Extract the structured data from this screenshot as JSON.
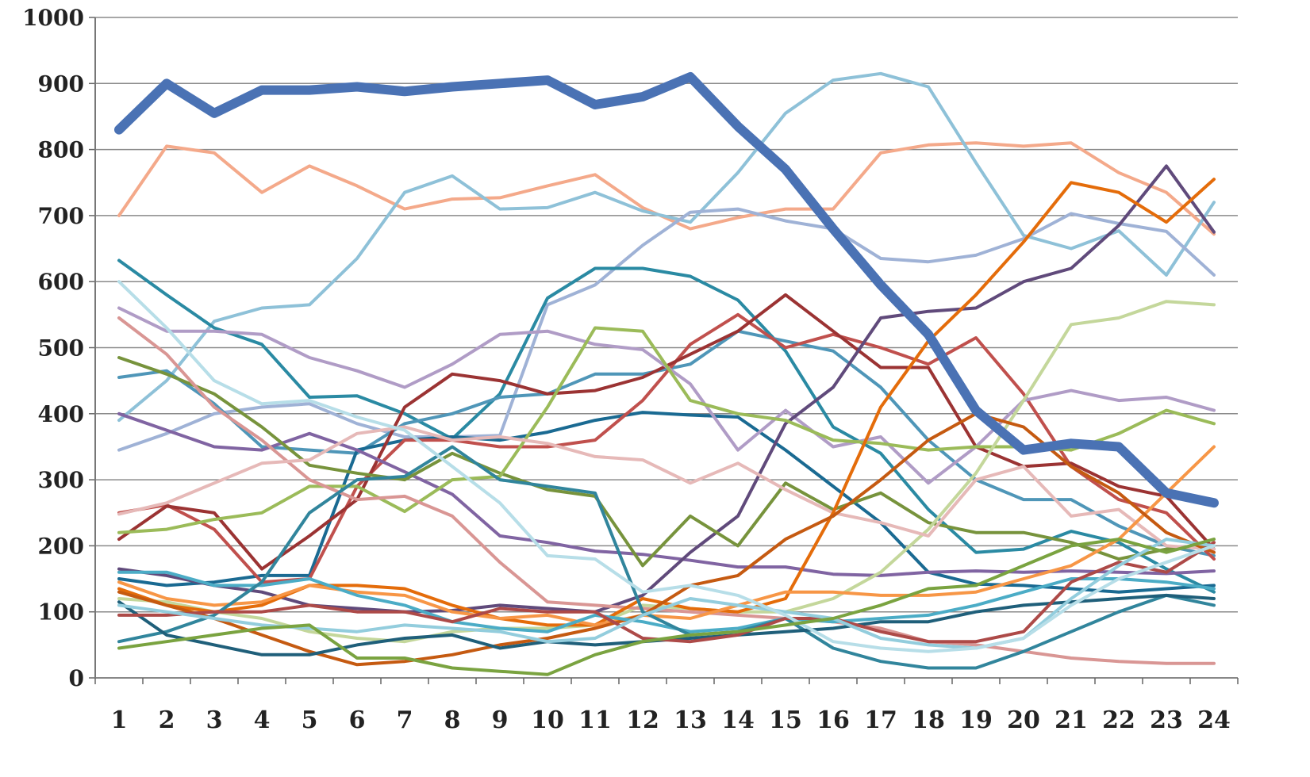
{
  "chart_data": {
    "type": "line",
    "title_fragment": "",
    "xlabel": "",
    "ylabel": "",
    "x": [
      1,
      2,
      3,
      4,
      5,
      6,
      7,
      8,
      9,
      10,
      11,
      12,
      13,
      14,
      15,
      16,
      17,
      18,
      19,
      20,
      21,
      22,
      23,
      24
    ],
    "ylim": [
      0,
      1000
    ],
    "yticks": [
      0,
      100,
      200,
      300,
      400,
      500,
      600,
      700,
      800,
      900,
      1000
    ],
    "grid": "horizontal",
    "legend": "none",
    "series": [
      {
        "color": "#4a72b4",
        "width": 12,
        "values": [
          830,
          900,
          855,
          890,
          890,
          895,
          888,
          895,
          900,
          905,
          868,
          880,
          910,
          835,
          770,
          680,
          595,
          520,
          405,
          345,
          355,
          350,
          280,
          265
        ]
      },
      {
        "color": "#f4a98a",
        "width": 4,
        "values": [
          700,
          805,
          795,
          735,
          775,
          745,
          710,
          725,
          727,
          745,
          762,
          712,
          680,
          697,
          710,
          710,
          795,
          807,
          810,
          805,
          810,
          765,
          735,
          672
        ]
      },
      {
        "color": "#8ec1d8",
        "width": 4,
        "values": [
          390,
          450,
          540,
          560,
          565,
          635,
          735,
          760,
          710,
          712,
          735,
          707,
          690,
          765,
          855,
          905,
          915,
          895,
          780,
          670,
          650,
          677,
          610,
          720
        ]
      },
      {
        "color": "#9fb2d6",
        "width": 4,
        "values": [
          345,
          370,
          400,
          410,
          415,
          385,
          365,
          365,
          367,
          565,
          595,
          655,
          705,
          710,
          692,
          680,
          635,
          630,
          640,
          665,
          703,
          688,
          676,
          610
        ]
      },
      {
        "color": "#2a8aa3",
        "width": 4,
        "values": [
          632,
          580,
          530,
          505,
          425,
          427,
          400,
          362,
          430,
          575,
          620,
          620,
          608,
          572,
          495,
          380,
          340,
          255,
          190,
          195,
          222,
          205,
          165,
          130
        ]
      },
      {
        "color": "#4f96b8",
        "width": 4,
        "values": [
          455,
          465,
          415,
          350,
          345,
          340,
          385,
          400,
          425,
          430,
          460,
          460,
          475,
          525,
          510,
          495,
          440,
          360,
          300,
          270,
          270,
          230,
          200,
          185
        ]
      },
      {
        "color": "#1a6a92",
        "width": 4,
        "values": [
          150,
          140,
          145,
          155,
          155,
          345,
          360,
          365,
          360,
          372,
          390,
          402,
          398,
          395,
          345,
          290,
          235,
          160,
          142,
          140,
          135,
          130,
          135,
          140
        ]
      },
      {
        "color": "#c0504d",
        "width": 4,
        "values": [
          250,
          262,
          225,
          145,
          150,
          290,
          360,
          360,
          350,
          350,
          360,
          420,
          505,
          550,
          500,
          520,
          500,
          475,
          515,
          430,
          320,
          270,
          250,
          180
        ]
      },
      {
        "color": "#9b3333",
        "width": 4,
        "values": [
          210,
          260,
          250,
          165,
          215,
          270,
          410,
          460,
          450,
          430,
          435,
          455,
          490,
          525,
          580,
          525,
          470,
          470,
          350,
          320,
          325,
          290,
          275,
          195
        ]
      },
      {
        "color": "#8064a2",
        "width": 4,
        "values": [
          400,
          375,
          350,
          345,
          370,
          345,
          312,
          278,
          215,
          205,
          192,
          187,
          178,
          168,
          168,
          157,
          155,
          160,
          162,
          160,
          162,
          160,
          158,
          162
        ]
      },
      {
        "color": "#b09cc6",
        "width": 4,
        "values": [
          560,
          525,
          525,
          520,
          485,
          465,
          440,
          475,
          520,
          525,
          505,
          497,
          445,
          345,
          405,
          350,
          365,
          295,
          350,
          420,
          435,
          420,
          425,
          405
        ]
      },
      {
        "color": "#604a7b",
        "width": 4,
        "values": [
          165,
          155,
          140,
          130,
          110,
          105,
          100,
          102,
          110,
          105,
          100,
          125,
          190,
          245,
          385,
          440,
          545,
          555,
          560,
          600,
          620,
          685,
          775,
          675
        ]
      },
      {
        "color": "#77933c",
        "width": 4,
        "values": [
          485,
          460,
          430,
          380,
          322,
          310,
          300,
          340,
          310,
          285,
          275,
          170,
          245,
          200,
          295,
          255,
          280,
          235,
          220,
          220,
          205,
          180,
          195,
          200
        ]
      },
      {
        "color": "#9bbb59",
        "width": 4,
        "values": [
          220,
          225,
          240,
          250,
          290,
          290,
          252,
          300,
          305,
          410,
          530,
          525,
          420,
          400,
          390,
          360,
          355,
          345,
          350,
          350,
          345,
          370,
          405,
          385
        ]
      },
      {
        "color": "#c4d79b",
        "width": 4,
        "values": [
          120,
          115,
          100,
          90,
          70,
          60,
          55,
          70,
          75,
          75,
          80,
          110,
          105,
          100,
          100,
          120,
          160,
          225,
          310,
          420,
          535,
          545,
          570,
          565
        ]
      },
      {
        "color": "#d99694",
        "width": 4,
        "values": [
          545,
          490,
          410,
          360,
          300,
          270,
          275,
          245,
          175,
          115,
          110,
          105,
          100,
          95,
          90,
          85,
          75,
          55,
          50,
          40,
          30,
          25,
          22,
          22
        ]
      },
      {
        "color": "#e6b9b8",
        "width": 4,
        "values": [
          248,
          265,
          295,
          325,
          330,
          370,
          380,
          360,
          365,
          355,
          335,
          330,
          295,
          325,
          285,
          250,
          235,
          215,
          300,
          320,
          245,
          255,
          200,
          195
        ]
      },
      {
        "color": "#e46c0a",
        "width": 4,
        "values": [
          135,
          110,
          100,
          110,
          140,
          140,
          135,
          110,
          90,
          80,
          80,
          120,
          105,
          100,
          120,
          250,
          410,
          510,
          580,
          660,
          750,
          735,
          690,
          755
        ]
      },
      {
        "color": "#f79646",
        "width": 4,
        "values": [
          145,
          120,
          110,
          115,
          140,
          130,
          125,
          100,
          90,
          95,
          80,
          95,
          90,
          110,
          130,
          130,
          125,
          125,
          130,
          150,
          170,
          210,
          280,
          350
        ]
      },
      {
        "color": "#c55a11",
        "width": 4,
        "values": [
          130,
          110,
          90,
          65,
          40,
          20,
          25,
          35,
          50,
          60,
          75,
          95,
          140,
          155,
          210,
          245,
          300,
          360,
          400,
          380,
          320,
          280,
          220,
          190
        ]
      },
      {
        "color": "#4bacc6",
        "width": 4,
        "values": [
          160,
          160,
          140,
          140,
          150,
          125,
          110,
          85,
          75,
          70,
          95,
          85,
          70,
          75,
          90,
          85,
          90,
          95,
          110,
          130,
          150,
          150,
          145,
          135
        ]
      },
      {
        "color": "#31859c",
        "width": 4,
        "values": [
          55,
          70,
          95,
          145,
          250,
          300,
          305,
          350,
          300,
          290,
          280,
          100,
          65,
          70,
          90,
          45,
          25,
          15,
          15,
          40,
          70,
          100,
          125,
          110
        ]
      },
      {
        "color": "#1f5f7a",
        "width": 4,
        "values": [
          115,
          65,
          50,
          35,
          35,
          50,
          60,
          65,
          45,
          55,
          50,
          55,
          60,
          65,
          70,
          75,
          85,
          85,
          100,
          110,
          115,
          120,
          125,
          120
        ]
      },
      {
        "color": "#ad4a48",
        "width": 4,
        "values": [
          95,
          95,
          100,
          100,
          110,
          100,
          100,
          85,
          105,
          100,
          100,
          60,
          55,
          65,
          90,
          90,
          70,
          55,
          55,
          70,
          145,
          175,
          160,
          205
        ]
      },
      {
        "color": "#93cddd",
        "width": 4,
        "values": [
          110,
          100,
          90,
          80,
          75,
          70,
          80,
          75,
          70,
          55,
          60,
          95,
          120,
          110,
          100,
          90,
          60,
          50,
          45,
          60,
          120,
          170,
          210,
          200
        ]
      },
      {
        "color": "#b7dee8",
        "width": 4,
        "values": [
          600,
          530,
          450,
          415,
          420,
          395,
          375,
          320,
          265,
          185,
          180,
          130,
          140,
          125,
          95,
          55,
          45,
          40,
          45,
          60,
          110,
          150,
          175,
          200
        ]
      },
      {
        "color": "#7aa340",
        "width": 4,
        "values": [
          45,
          55,
          65,
          75,
          80,
          30,
          30,
          15,
          10,
          5,
          35,
          55,
          65,
          70,
          80,
          90,
          110,
          135,
          140,
          170,
          200,
          210,
          190,
          210
        ]
      }
    ]
  }
}
